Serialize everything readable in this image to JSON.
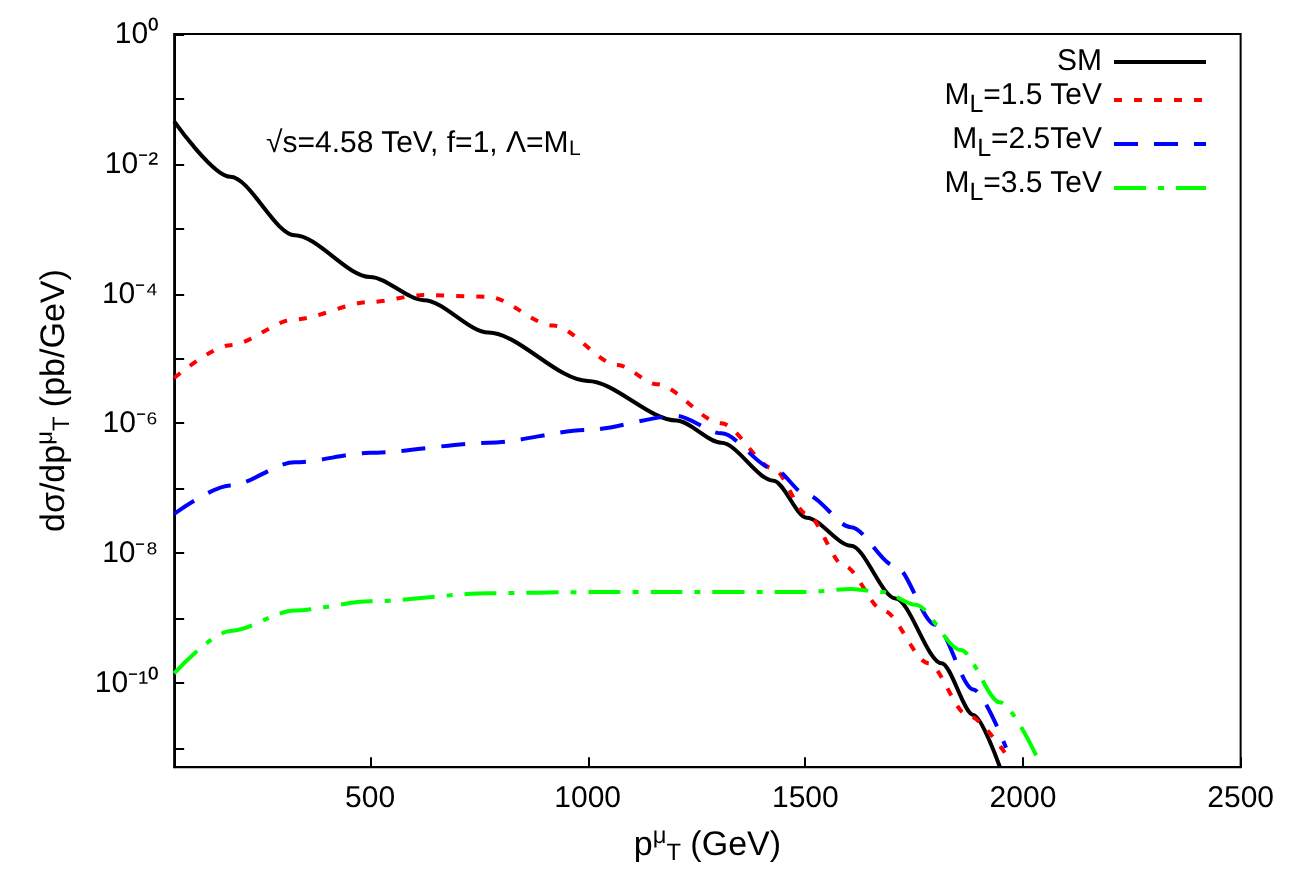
{
  "chart_data": {
    "type": "line",
    "xlabel": "p$^{μ}$$_{T}$ (GeV)",
    "ylabel": "dσ/dp$^{μ}$$_{T}$ (pb/GeV)",
    "log": "y",
    "grid": false,
    "legend": "top right",
    "marker": "none",
    "annotations": [
      "√s=4.58 TeV, f=1, Λ=M$_{L}$"
    ],
    "xlim": [
      50,
      2500
    ],
    "xticks": [
      500,
      1000,
      1500,
      2000,
      2500
    ],
    "ylim": [
      5e-12,
      1
    ],
    "yticks": [
      {
        "value": 1,
        "label": "10⁰"
      },
      {
        "value": 0.1,
        "label": null
      },
      {
        "value": 0.01,
        "label": "10⁻²"
      },
      {
        "value": 0.001,
        "label": null
      },
      {
        "value": 0.0001,
        "label": "10⁻⁴"
      },
      {
        "value": 1e-05,
        "label": null
      },
      {
        "value": 1e-06,
        "label": "10⁻⁶"
      },
      {
        "value": 1e-07,
        "label": null
      },
      {
        "value": 1e-08,
        "label": "10⁻⁸"
      },
      {
        "value": 1e-09,
        "label": null
      },
      {
        "value": 1e-10,
        "label": "10⁻¹⁰"
      },
      {
        "value": 1e-11,
        "label": null
      }
    ],
    "series": [
      {
        "name": "SM",
        "color": "#000000",
        "line_style": "solid",
        "x": [
          50,
          179,
          327,
          500,
          624,
          772,
          1000,
          1204,
          1307,
          1427,
          1503,
          1605,
          1707,
          1813,
          1886,
          1947
        ],
        "values": [
          0.045,
          0.0063,
          0.00079,
          0.00018,
          7.9e-05,
          2.5e-05,
          4.5e-06,
          1.1e-06,
          5e-07,
          1.3e-07,
          3.5e-08,
          1.3e-08,
          2e-09,
          2e-10,
          3.2e-11,
          5e-12
        ]
      },
      {
        "name": "M$_{L}$=1.5 TeV",
        "color": "#ff0000",
        "line_style": "dotted",
        "x": [
          50,
          179,
          327,
          500,
          624,
          772,
          921,
          1069,
          1159,
          1307,
          1427,
          1503,
          1590,
          1679,
          1783,
          1872,
          1961
        ],
        "values": [
          5e-06,
          1.6e-05,
          4e-05,
          7.4e-05,
          9.5e-05,
          8.9e-05,
          3.2e-05,
          7.9e-06,
          4e-06,
          1e-06,
          2e-07,
          4e-08,
          6.3e-09,
          1.3e-09,
          2e-10,
          3.2e-11,
          7.9e-12
        ]
      },
      {
        "name": "M$_{L}$=2.5TeV",
        "color": "#0000ff",
        "line_style": "dashed",
        "x": [
          50,
          179,
          327,
          500,
          772,
          1000,
          1204,
          1307,
          1427,
          1503,
          1605,
          1707,
          1798,
          1886,
          1961
        ],
        "values": [
          4e-08,
          1.1e-07,
          2.5e-07,
          3.5e-07,
          5e-07,
          7.9e-07,
          1.3e-06,
          7e-07,
          2e-07,
          7.9e-08,
          2.5e-08,
          6.3e-09,
          7.9e-10,
          7.9e-11,
          1e-11
        ]
      },
      {
        "name": "M$_{L}$=3.5 TeV",
        "color": "#00ff00",
        "line_style": "dashdot",
        "x": [
          50,
          179,
          327,
          500,
          772,
          1000,
          1159,
          1503,
          1605,
          1679,
          1753,
          1857,
          1947,
          2036
        ],
        "values": [
          1.4e-10,
          6.3e-10,
          1.3e-09,
          1.8e-09,
          2.4e-09,
          2.5e-09,
          2.5e-09,
          2.5e-09,
          2.8e-09,
          2.5e-09,
          1.6e-09,
          3.2e-10,
          5e-11,
          6.3e-12
        ]
      }
    ]
  }
}
